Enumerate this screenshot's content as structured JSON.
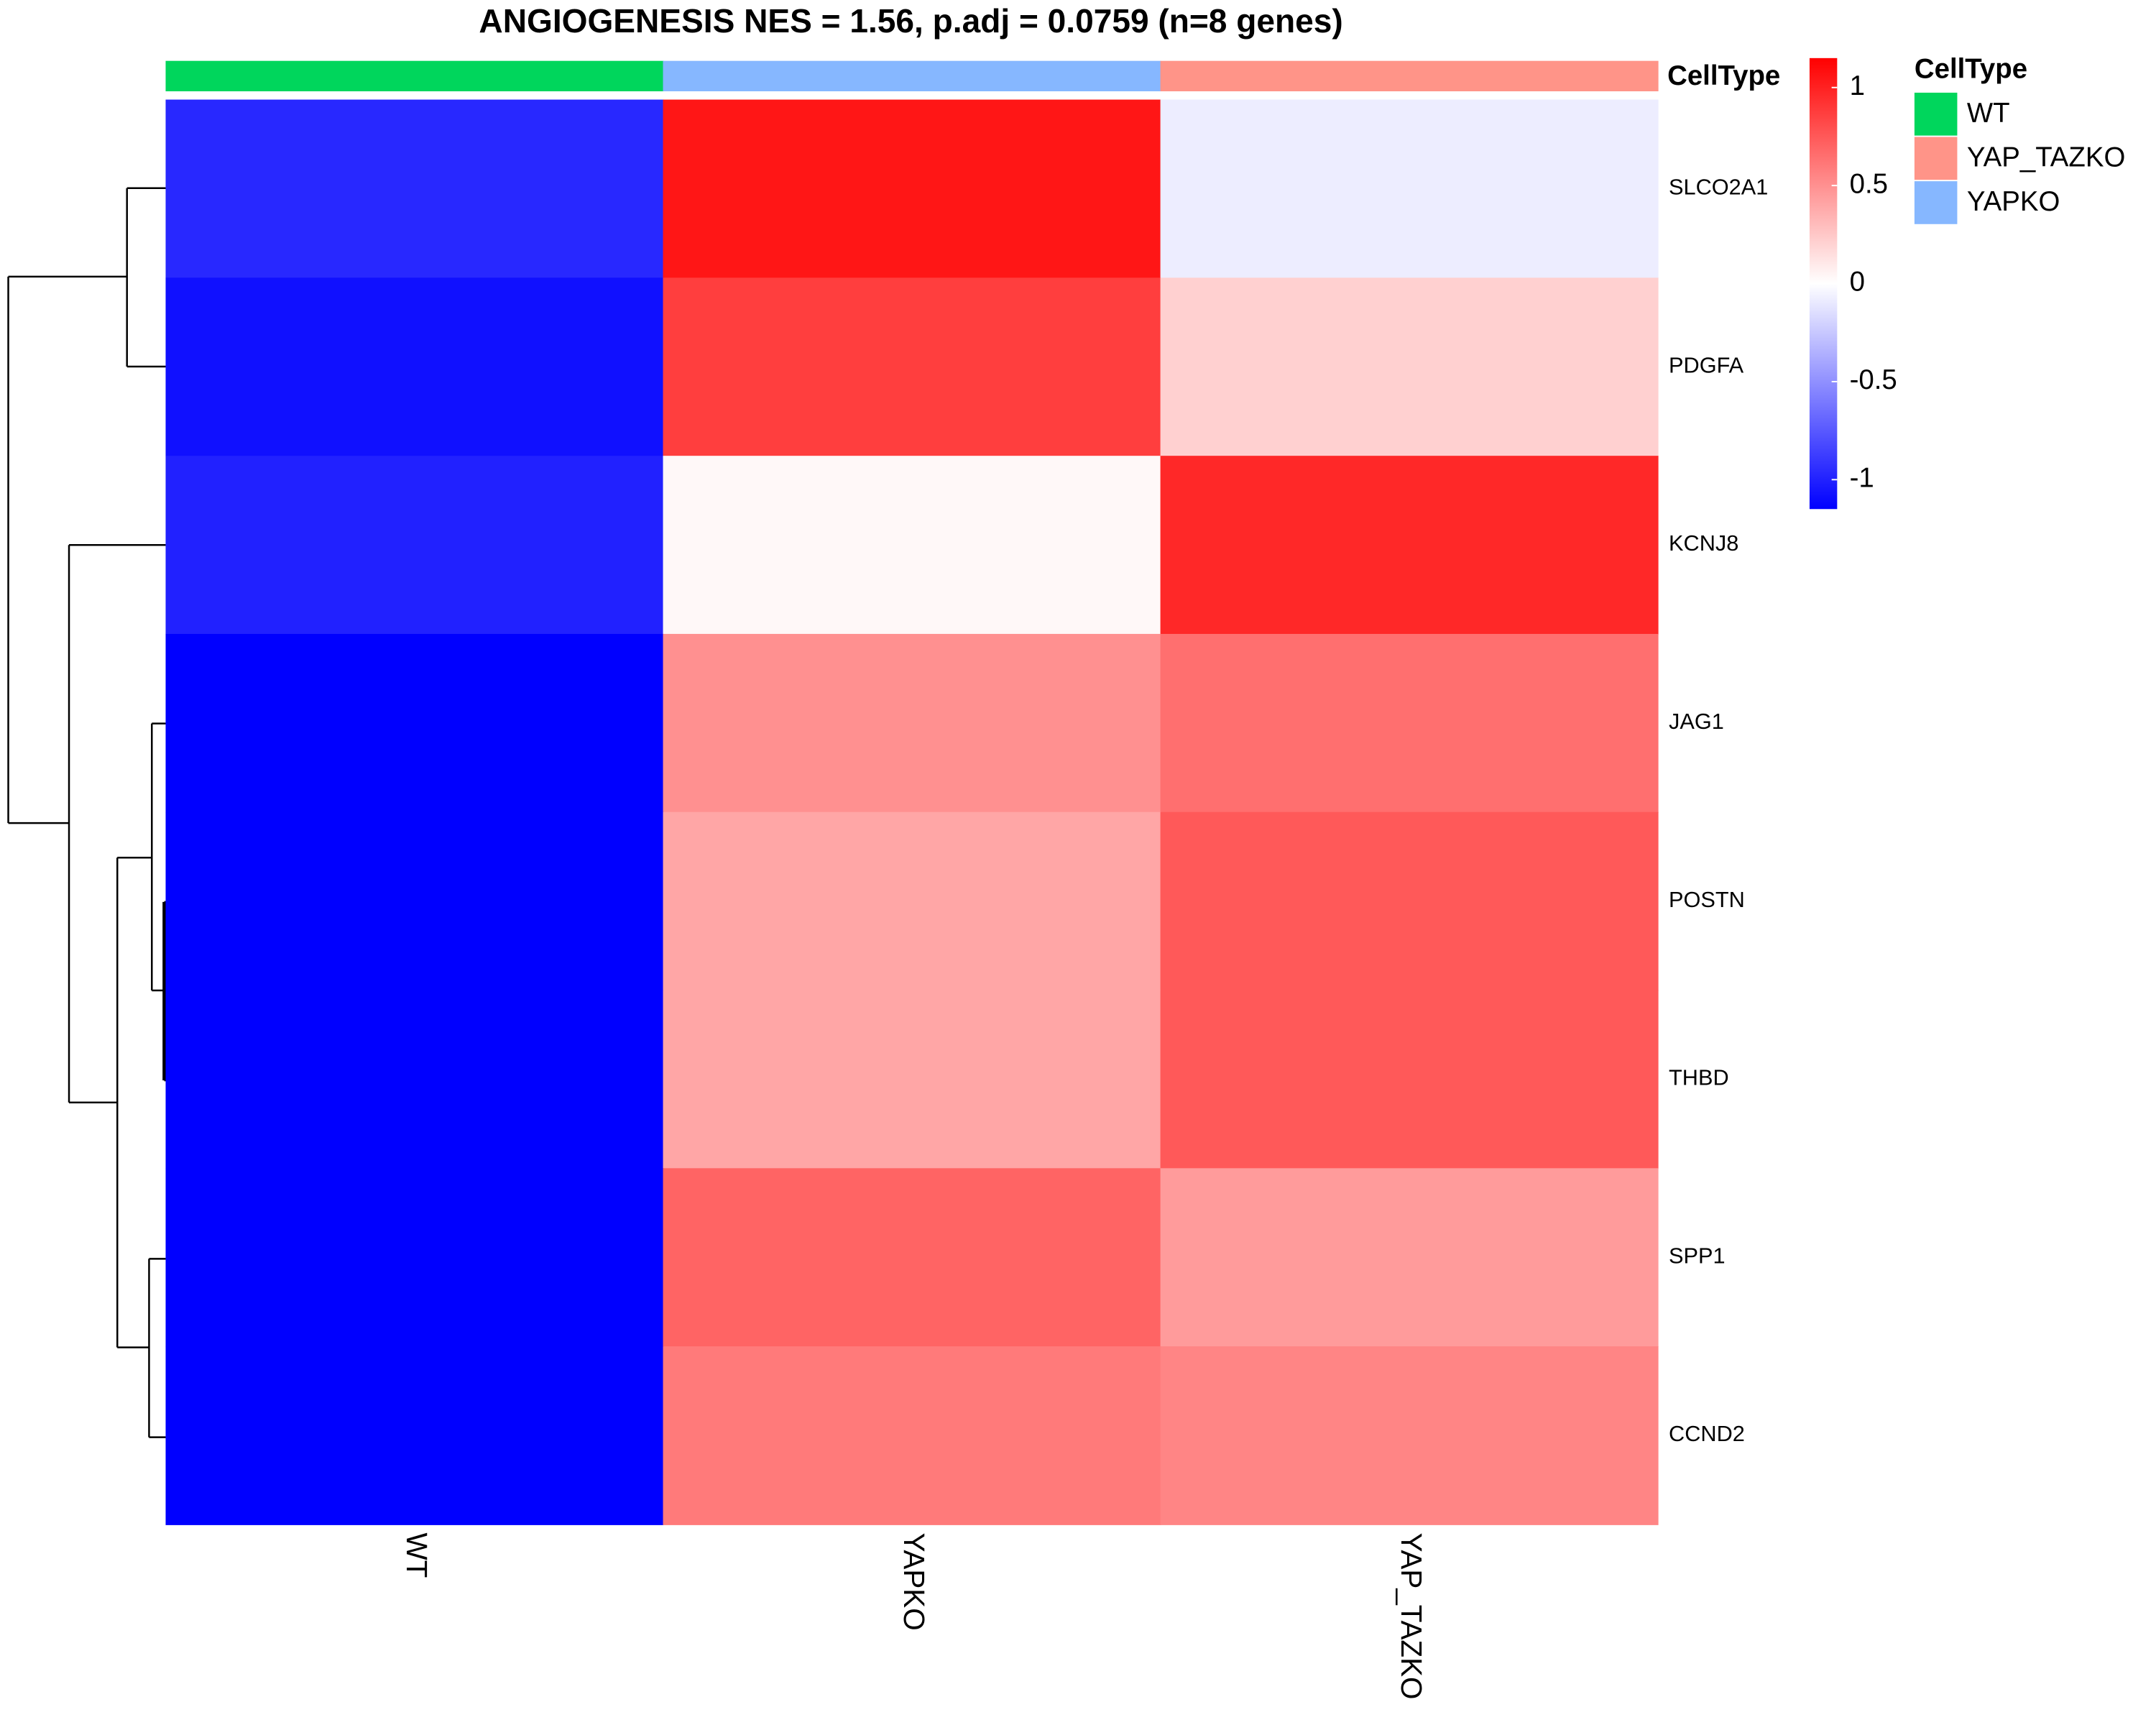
{
  "chart_data": {
    "type": "heatmap",
    "title": "ANGIOGENESIS NES = 1.56, p.adj = 0.0759 (n=8 genes)",
    "columns": [
      "WT",
      "YAPKO",
      "YAP_TAZKO"
    ],
    "rows": [
      "SLCO2A1",
      "PDGFA",
      "KCNJ8",
      "JAG1",
      "POSTN",
      "THBD",
      "SPP1",
      "CCND2"
    ],
    "values": [
      [
        -0.97,
        1.05,
        -0.08
      ],
      [
        -1.08,
        0.87,
        0.21
      ],
      [
        -1.0,
        0.03,
        0.97
      ],
      [
        -1.15,
        0.5,
        0.65
      ],
      [
        -1.15,
        0.4,
        0.75
      ],
      [
        -1.15,
        0.4,
        0.75
      ],
      [
        -1.15,
        0.7,
        0.45
      ],
      [
        -1.15,
        0.6,
        0.55
      ]
    ],
    "colors": [
      "#0000FF",
      "#FFFFFF",
      "#FF0000"
    ],
    "zlim": [
      -1.15,
      1.15
    ],
    "zticks": [
      1,
      0.5,
      0,
      -0.5,
      -1
    ],
    "annotation_label": "CellType",
    "annotation": [
      "WT",
      "YAPKO",
      "YAP_TAZKO"
    ],
    "legend": {
      "title": "CellType",
      "items": [
        {
          "name": "WT",
          "color": "#00D65C"
        },
        {
          "name": "YAP_TAZKO",
          "color": "#FF9488"
        },
        {
          "name": "YAPKO",
          "color": "#86B7FF"
        }
      ]
    }
  }
}
